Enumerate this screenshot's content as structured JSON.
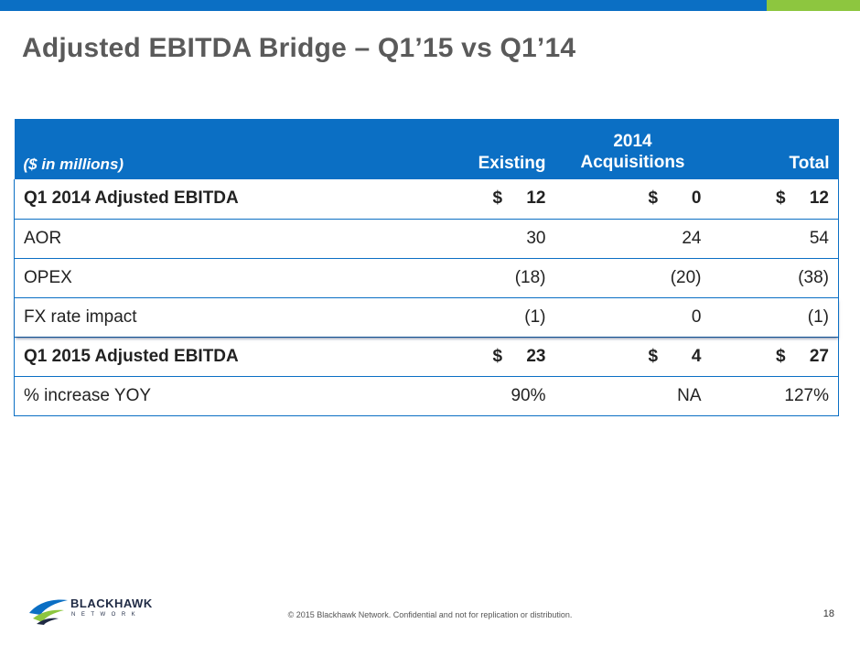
{
  "header": {
    "accent_blue": "#0b6fc4",
    "accent_green": "#8dc63f",
    "title": "Adjusted EBITDA Bridge – Q1’15 vs Q1’14"
  },
  "table": {
    "units_label": "($ in millions)",
    "col_existing": "Existing",
    "col_acq_line1": "2014",
    "col_acq_line2": "Acquisitions",
    "col_total": "Total",
    "rows": [
      {
        "label": "Q1 2014 Adjusted EBITDA",
        "existing": "12",
        "acq": "0",
        "total": "12"
      },
      {
        "label": "AOR",
        "existing": "30",
        "acq": "24",
        "total": "54"
      },
      {
        "label": "OPEX",
        "existing": "(18)",
        "acq": "(20)",
        "total": "(38)"
      },
      {
        "label": "FX rate impact",
        "existing": "(1)",
        "acq": "0",
        "total": "(1)"
      },
      {
        "label": "Q1 2015 Adjusted EBITDA",
        "existing": "23",
        "acq": "4",
        "total": "27"
      },
      {
        "label": "% increase YOY",
        "existing": "90%",
        "acq": "NA",
        "total": "127%"
      }
    ],
    "currency_symbol": "$"
  },
  "footer": {
    "copyright": "© 2015 Blackhawk Network. Confidential and not for replication or distribution.",
    "page_number": "18",
    "logo_text": "BLACKHAWK",
    "logo_subtext": "NETWORK"
  }
}
